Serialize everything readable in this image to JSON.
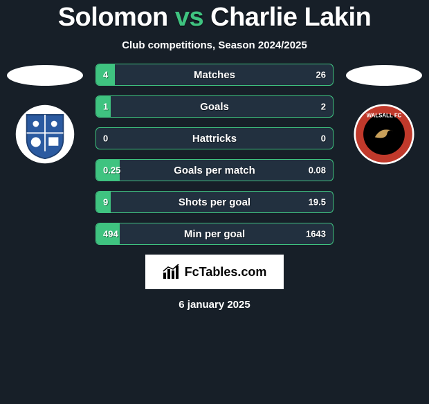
{
  "colors": {
    "background": "#171f28",
    "accent": "#3fc380",
    "bar_bg": "#22303f",
    "text": "#ffffff"
  },
  "header": {
    "player1": "Solomon",
    "vs": "vs",
    "player2": "Charlie Lakin",
    "subtitle": "Club competitions, Season 2024/2025"
  },
  "left": {
    "club": "Tranmere Rovers",
    "badge": {
      "shape": "shield",
      "primary": "#ffffff",
      "secondary": "#2b5aa0",
      "border": "#1e3f70"
    }
  },
  "right": {
    "club": "Walsall FC",
    "badge": {
      "shape": "circle",
      "primary": "#c0392b",
      "secondary": "#000000",
      "border": "#ffffff"
    }
  },
  "stats": [
    {
      "label": "Matches",
      "left_val": "4",
      "right_val": "26",
      "left_pct": 8,
      "right_pct": 0
    },
    {
      "label": "Goals",
      "left_val": "1",
      "right_val": "2",
      "left_pct": 6,
      "right_pct": 0
    },
    {
      "label": "Hattricks",
      "left_val": "0",
      "right_val": "0",
      "left_pct": 0,
      "right_pct": 0
    },
    {
      "label": "Goals per match",
      "left_val": "0.25",
      "right_val": "0.08",
      "left_pct": 10,
      "right_pct": 0
    },
    {
      "label": "Shots per goal",
      "left_val": "9",
      "right_val": "19.5",
      "left_pct": 6,
      "right_pct": 0
    },
    {
      "label": "Min per goal",
      "left_val": "494",
      "right_val": "1643",
      "left_pct": 10,
      "right_pct": 0
    }
  ],
  "footer": {
    "site": "FcTables.com",
    "date": "6 january 2025"
  }
}
